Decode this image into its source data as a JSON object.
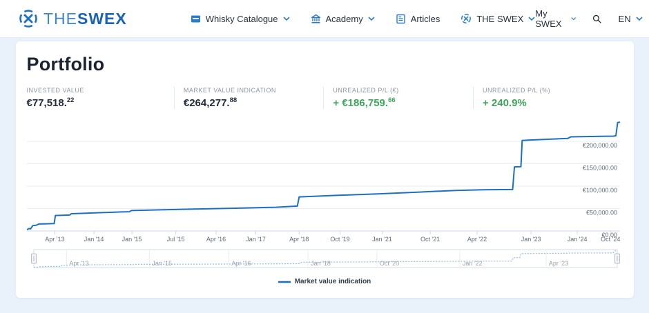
{
  "header": {
    "logo": {
      "the": "THE",
      "swex": "SWEX"
    },
    "nav": [
      {
        "label": "Whisky Catalogue",
        "icon": "whisky-catalogue-icon",
        "chevron": true
      },
      {
        "label": "Academy",
        "icon": "academy-icon",
        "chevron": true
      },
      {
        "label": "Articles",
        "icon": "articles-icon",
        "chevron": false
      },
      {
        "label": "THE SWEX",
        "icon": "swex-roundel-icon",
        "chevron": true
      }
    ],
    "right": {
      "my_swex": "My SWEX",
      "language": "EN"
    }
  },
  "portfolio": {
    "title": "Portfolio",
    "stats": [
      {
        "label": "INVESTED VALUE",
        "value": "€77,518.",
        "sup": "22"
      },
      {
        "label": "MARKET VALUE INDICATION",
        "value": "€264,277.",
        "sup": "88"
      },
      {
        "label": "UNREALIZED P/L (€)",
        "value": "+ €186,759.",
        "sup": "66"
      },
      {
        "label": "UNREALIZED P/L (%)",
        "value": "+ 240.9%",
        "sup": ""
      }
    ]
  },
  "chart_data": {
    "type": "line",
    "legend": "Market value indication",
    "colors": {
      "line": "#1d6fc0",
      "navigator_line": "#8fbfe4",
      "grid": "#e8edf3",
      "axis": "#ccd6eb",
      "tick_label": "#5d6877",
      "nav_label": "#999fa8",
      "green": "#3fa45c",
      "brand_blue": "#1a63b5"
    },
    "y_axis": {
      "ticks": [
        {
          "value": 0,
          "label": "€0.00"
        },
        {
          "value": 50000,
          "label": "€50,000.00"
        },
        {
          "value": 100000,
          "label": "€100,000.00"
        },
        {
          "value": 150000,
          "label": "€150,000.00"
        },
        {
          "value": 200000,
          "label": "€200,000.00"
        }
      ]
    },
    "x_axis": {
      "ticks": [
        {
          "f": 0.047,
          "label": "Apr '13"
        },
        {
          "f": 0.113,
          "label": "Jan '14"
        },
        {
          "f": 0.177,
          "label": "Jan '15"
        },
        {
          "f": 0.251,
          "label": "Jul '15"
        },
        {
          "f": 0.319,
          "label": "Apr '16"
        },
        {
          "f": 0.386,
          "label": "Jan '17"
        },
        {
          "f": 0.459,
          "label": "Apr '18"
        },
        {
          "f": 0.528,
          "label": "Oct '19"
        },
        {
          "f": 0.599,
          "label": "Jan '21"
        },
        {
          "f": 0.68,
          "label": "Oct '21"
        },
        {
          "f": 0.759,
          "label": "Apr '22"
        },
        {
          "f": 0.85,
          "label": "Jan '23"
        },
        {
          "f": 0.928,
          "label": "Jan '24"
        },
        {
          "f": 0.984,
          "label": "Oct '24"
        }
      ]
    },
    "navigator": {
      "ticks": [
        {
          "f": 0.056,
          "label": "Apr '13"
        },
        {
          "f": 0.198,
          "label": "Jan '15"
        },
        {
          "f": 0.334,
          "label": "Apr '16"
        },
        {
          "f": 0.47,
          "label": "Jan '18"
        },
        {
          "f": 0.588,
          "label": "Oct '20"
        },
        {
          "f": 0.73,
          "label": "Jan '22"
        },
        {
          "f": 0.878,
          "label": "Apr '23"
        }
      ]
    },
    "series": [
      {
        "name": "Market value indication",
        "points": [
          [
            0.0,
            3000
          ],
          [
            0.004,
            5500
          ],
          [
            0.006,
            4500
          ],
          [
            0.01,
            12000
          ],
          [
            0.016,
            13000
          ],
          [
            0.02,
            15500
          ],
          [
            0.034,
            16000
          ],
          [
            0.046,
            16500
          ],
          [
            0.048,
            34500
          ],
          [
            0.072,
            35500
          ],
          [
            0.075,
            38500
          ],
          [
            0.107,
            40000
          ],
          [
            0.16,
            42500
          ],
          [
            0.173,
            43000
          ],
          [
            0.176,
            45500
          ],
          [
            0.224,
            47000
          ],
          [
            0.282,
            48800
          ],
          [
            0.352,
            50800
          ],
          [
            0.42,
            53000
          ],
          [
            0.456,
            55500
          ],
          [
            0.459,
            76000
          ],
          [
            0.525,
            79500
          ],
          [
            0.595,
            83000
          ],
          [
            0.665,
            87000
          ],
          [
            0.723,
            90500
          ],
          [
            0.77,
            92000
          ],
          [
            0.819,
            92500
          ],
          [
            0.822,
            143000
          ],
          [
            0.833,
            143500
          ],
          [
            0.835,
            202000
          ],
          [
            0.875,
            204500
          ],
          [
            0.912,
            206500
          ],
          [
            0.917,
            210000
          ],
          [
            0.967,
            211000
          ],
          [
            0.989,
            211500
          ],
          [
            0.993,
            212500
          ],
          [
            0.996,
            242000
          ],
          [
            1.0,
            243000
          ]
        ]
      }
    ]
  }
}
